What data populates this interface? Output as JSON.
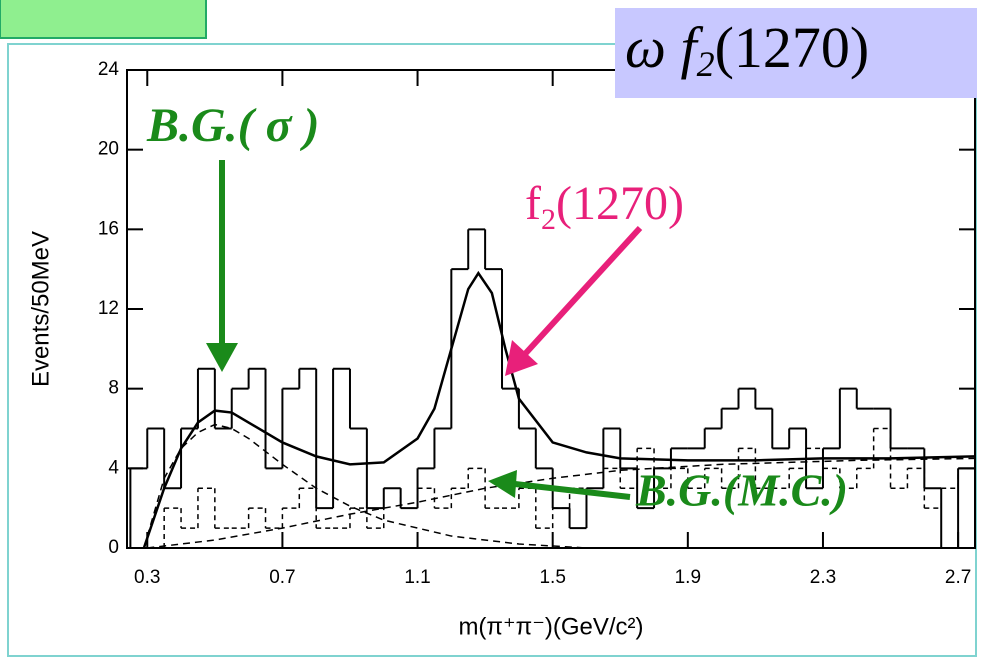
{
  "chart_data": {
    "type": "histogram",
    "x_label": "m(π⁺π⁻)(GeV/c²)",
    "y_label": "Events/50MeV",
    "xlim": [
      0.24,
      2.75
    ],
    "ylim": [
      0,
      24
    ],
    "xticks": [
      0.3,
      0.7,
      1.1,
      1.5,
      1.9,
      2.3,
      2.7
    ],
    "yticks": [
      0,
      4,
      8,
      12,
      16,
      20,
      24
    ],
    "bins": [
      0.25,
      0.3,
      0.35,
      0.4,
      0.45,
      0.5,
      0.55,
      0.6,
      0.65,
      0.7,
      0.75,
      0.8,
      0.85,
      0.9,
      0.95,
      1.0,
      1.05,
      1.1,
      1.15,
      1.2,
      1.25,
      1.3,
      1.35,
      1.4,
      1.45,
      1.5,
      1.55,
      1.6,
      1.65,
      1.7,
      1.75,
      1.8,
      1.85,
      1.9,
      1.95,
      2.0,
      2.05,
      2.1,
      2.15,
      2.2,
      2.25,
      2.3,
      2.35,
      2.4,
      2.45,
      2.5,
      2.55,
      2.6,
      2.65,
      2.7,
      2.75
    ],
    "series": [
      {
        "style": "solid",
        "color": "#000000",
        "values": [
          4,
          6,
          3,
          6,
          9,
          6,
          8,
          9,
          4,
          8,
          9,
          2,
          9,
          6,
          2,
          3,
          2,
          4,
          6,
          14,
          16,
          14,
          8,
          6,
          4,
          2,
          1,
          3,
          6,
          4,
          2,
          4,
          5,
          5,
          6,
          7,
          8,
          7,
          5,
          6,
          3,
          5,
          8,
          7,
          7,
          5,
          5,
          3,
          0,
          4
        ]
      },
      {
        "style": "dashed",
        "color": "#000000",
        "values": [
          0,
          0,
          2,
          1,
          3,
          1,
          1,
          2,
          1,
          2,
          3,
          1,
          1,
          2,
          1,
          3,
          2,
          3,
          2,
          3,
          4,
          2,
          2,
          3,
          1,
          2,
          3,
          3,
          4,
          3,
          5,
          3,
          4,
          3,
          4,
          3,
          5,
          3,
          3,
          4,
          5,
          4,
          3,
          4,
          6,
          3,
          4,
          2,
          3,
          4
        ]
      }
    ],
    "curves": [
      {
        "style": "solid",
        "x": [
          0.29,
          0.35,
          0.4,
          0.45,
          0.5,
          0.55,
          0.6,
          0.7,
          0.8,
          0.9,
          1.0,
          1.1,
          1.15,
          1.2,
          1.25,
          1.28,
          1.32,
          1.36,
          1.4,
          1.5,
          1.6,
          1.7,
          1.9,
          2.1,
          2.3,
          2.5,
          2.75
        ],
        "y": [
          0,
          3,
          5,
          6.3,
          6.9,
          6.8,
          6.3,
          5.3,
          4.6,
          4.2,
          4.3,
          5.5,
          7,
          10,
          13,
          13.8,
          12.8,
          10,
          7.5,
          5.3,
          4.8,
          4.5,
          4.4,
          4.4,
          4.5,
          4.5,
          4.6
        ]
      },
      {
        "style": "dashed",
        "x": [
          0.29,
          0.35,
          0.4,
          0.45,
          0.5,
          0.55,
          0.6,
          0.7,
          0.8,
          0.9,
          1.0,
          1.2,
          1.4,
          1.6
        ],
        "y": [
          0,
          3.5,
          5,
          5.8,
          6.2,
          6,
          5.5,
          4.2,
          3,
          2.1,
          1.4,
          0.6,
          0.2,
          0
        ]
      },
      {
        "style": "dashed",
        "x": [
          0.3,
          0.5,
          0.7,
          0.9,
          1.1,
          1.3,
          1.5,
          1.7,
          2.0,
          2.4,
          2.75
        ],
        "y": [
          0,
          0.4,
          1,
          1.7,
          2.3,
          3,
          3.5,
          3.9,
          4.2,
          4.4,
          4.5
        ]
      }
    ],
    "annotations": {
      "bg_sigma": "B.G.( σ )",
      "f2_main": "f",
      "f2_sub": "2",
      "f2_mass": "(1270)",
      "bg_mc": "B.G.(M.C.)",
      "channel_main": "ω f",
      "channel_sub": "2",
      "channel_mass": "(1270)"
    }
  }
}
